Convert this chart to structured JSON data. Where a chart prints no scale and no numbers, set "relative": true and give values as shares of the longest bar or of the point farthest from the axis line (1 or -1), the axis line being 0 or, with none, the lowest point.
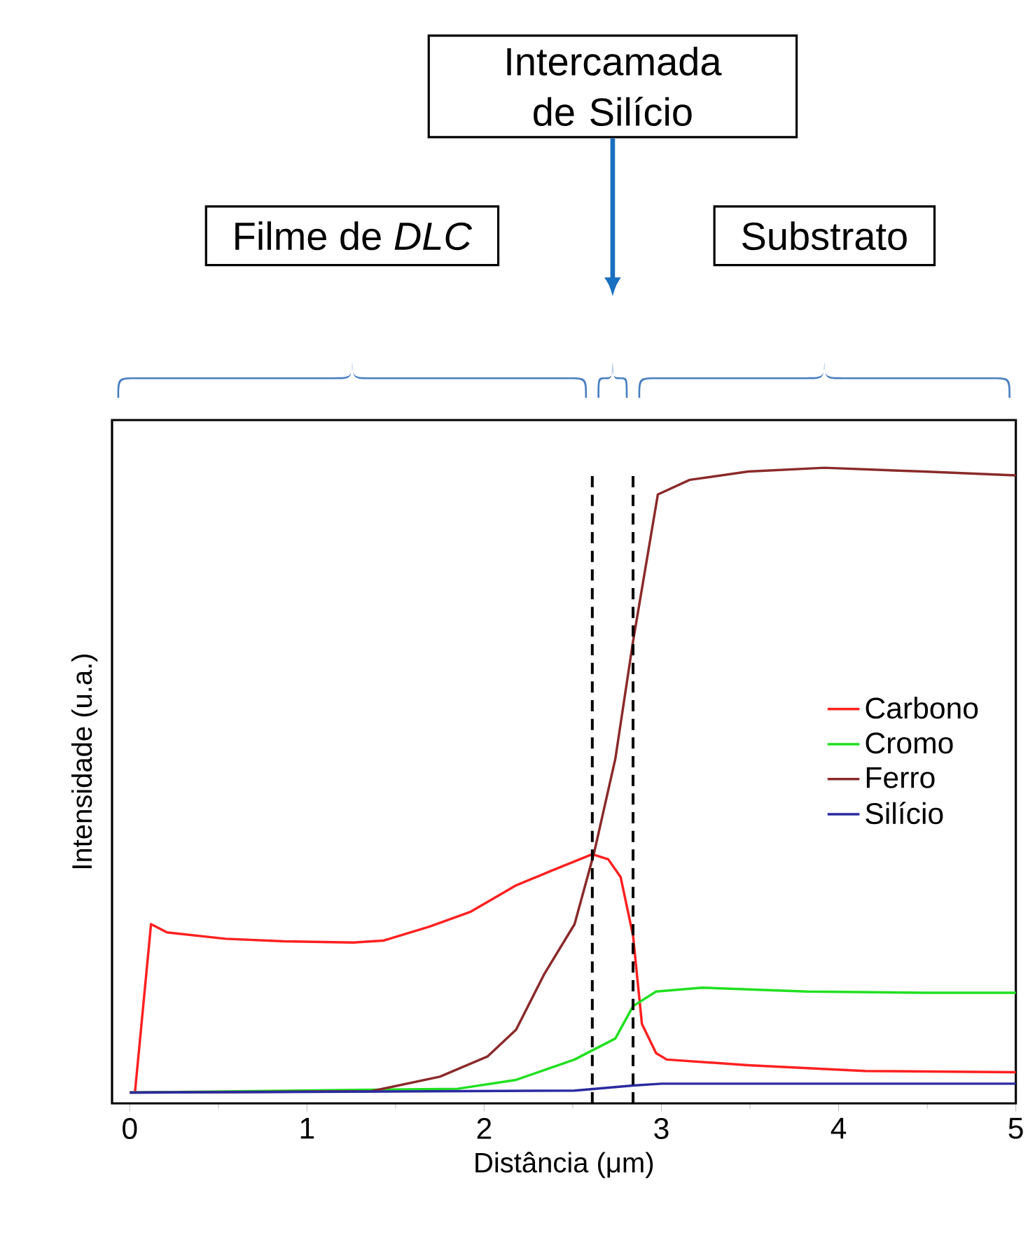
{
  "chart_data": {
    "type": "line",
    "relative": true,
    "xlabel": "Distância (μm)",
    "ylabel": "Intensidade (u.a.)",
    "xlim": [
      -0.1,
      5
    ],
    "xticks": [
      0,
      1,
      2,
      3,
      4,
      5
    ],
    "legend": "right",
    "line_style": "solid",
    "annotations": [
      "Filme de *DLC*",
      "Intercamada de Silício",
      "Substrato"
    ],
    "ref_lines": [
      {
        "axis": "x",
        "value": 2.61,
        "color": "#000000",
        "line_style": "dashed"
      },
      {
        "axis": "x",
        "value": 2.84,
        "color": "#000000",
        "line_style": "dashed"
      }
    ],
    "series": [
      {
        "name": "Carbono",
        "color": "#ff2020",
        "x": [
          0.03,
          0.12,
          0.21,
          0.54,
          0.87,
          1.26,
          1.43,
          1.69,
          1.92,
          2.18,
          2.38,
          2.61,
          2.7,
          2.77,
          2.84,
          2.89,
          2.97,
          3.03,
          3.49,
          4.15,
          5.0
        ],
        "values": [
          0.019,
          0.282,
          0.269,
          0.259,
          0.255,
          0.253,
          0.256,
          0.278,
          0.301,
          0.343,
          0.366,
          0.392,
          0.384,
          0.356,
          0.264,
          0.125,
          0.079,
          0.069,
          0.06,
          0.051,
          0.049
        ]
      },
      {
        "name": "Cromo",
        "color": "#20e020",
        "x": [
          0,
          1.85,
          2.18,
          2.51,
          2.74,
          2.84,
          2.97,
          3.23,
          3.82,
          4.48,
          5.0
        ],
        "values": [
          0.017,
          0.023,
          0.037,
          0.069,
          0.102,
          0.153,
          0.176,
          0.182,
          0.176,
          0.174,
          0.174
        ]
      },
      {
        "name": "Ferro",
        "color": "#8b2a2a",
        "x": [
          0,
          1.36,
          1.75,
          2.02,
          2.18,
          2.34,
          2.51,
          2.62,
          2.74,
          2.84,
          2.98,
          3.16,
          3.49,
          3.92,
          4.48,
          5.0
        ],
        "values": [
          0.017,
          0.019,
          0.042,
          0.074,
          0.116,
          0.204,
          0.282,
          0.394,
          0.542,
          0.727,
          0.958,
          0.981,
          0.994,
          1.0,
          0.994,
          0.988
        ]
      },
      {
        "name": "Silício",
        "color": "#2a2aa0",
        "x": [
          0,
          2.51,
          2.84,
          3.0,
          5.0
        ],
        "values": [
          0.017,
          0.02,
          0.028,
          0.031,
          0.031
        ]
      }
    ]
  }
}
